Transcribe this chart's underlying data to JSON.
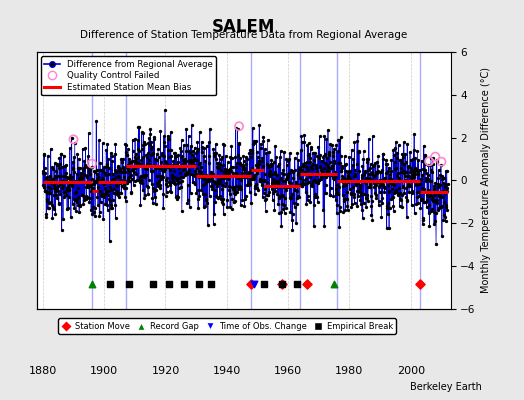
{
  "title": "SALEM",
  "subtitle": "Difference of Station Temperature Data from Regional Average",
  "ylabel": "Monthly Temperature Anomaly Difference (°C)",
  "xlabel_years": [
    1880,
    1900,
    1920,
    1940,
    1960,
    1980,
    2000
  ],
  "ylim": [
    -6,
    6
  ],
  "xlim": [
    1878,
    2013
  ],
  "background_color": "#e8e8e8",
  "plot_bg_color": "#ffffff",
  "grid_color": "#c0c0c0",
  "line_color": "#0000cc",
  "marker_color": "#000000",
  "bias_color": "#ff0000",
  "qc_color": "#ff88cc",
  "vline_color": "#aaaaff",
  "watermark": "Berkeley Earth",
  "segments": [
    {
      "start": 1880,
      "end": 1896,
      "bias": -0.1
    },
    {
      "start": 1896,
      "end": 1898,
      "bias": -0.5
    },
    {
      "start": 1898,
      "end": 1907,
      "bias": -0.1
    },
    {
      "start": 1907,
      "end": 1930,
      "bias": 0.65
    },
    {
      "start": 1930,
      "end": 1948,
      "bias": 0.2
    },
    {
      "start": 1948,
      "end": 1952,
      "bias": 0.5
    },
    {
      "start": 1952,
      "end": 1964,
      "bias": -0.25
    },
    {
      "start": 1964,
      "end": 1976,
      "bias": 0.3
    },
    {
      "start": 1976,
      "end": 2003,
      "bias": -0.05
    },
    {
      "start": 2003,
      "end": 2012,
      "bias": -0.55
    }
  ],
  "vertical_lines": [
    1896,
    1907,
    1948,
    1964,
    1976,
    2003
  ],
  "station_moves": [
    1948,
    1958,
    1966,
    2003
  ],
  "record_gaps": [
    1896,
    1975
  ],
  "obs_changes": [
    1949
  ],
  "empirical_breaks": [
    1902,
    1908,
    1916,
    1921,
    1926,
    1931,
    1935,
    1952,
    1958,
    1963
  ],
  "qc_failed_years": [
    1890,
    1896,
    1944,
    2006,
    2008,
    2010
  ],
  "seed": 42,
  "noise_std": 0.85
}
